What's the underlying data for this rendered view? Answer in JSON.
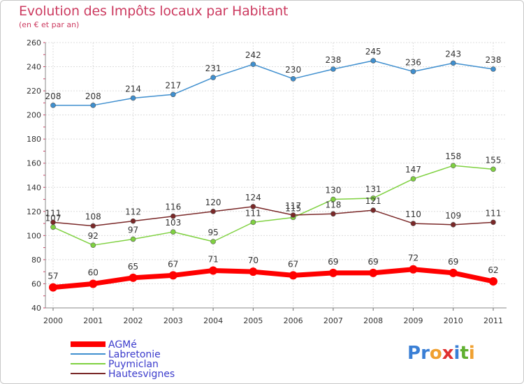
{
  "title": "Evolution des Impôts locaux par Habitant",
  "subtitle": "(en € et par an)",
  "logo": {
    "letters": [
      {
        "ch": "P",
        "color": "#3a7fd5"
      },
      {
        "ch": "r",
        "color": "#3a7fd5"
      },
      {
        "ch": "o",
        "color": "#f0a030"
      },
      {
        "ch": "x",
        "color": "#e03030"
      },
      {
        "ch": "i",
        "color": "#3a7fd5"
      },
      {
        "ch": "t",
        "color": "#60b030"
      },
      {
        "ch": "i",
        "color": "#f0a030"
      }
    ]
  },
  "chart_data": {
    "type": "line",
    "title": "Evolution des Impôts locaux par Habitant",
    "subtitle": "(en € et par an)",
    "x": [
      "2000",
      "2001",
      "2002",
      "2003",
      "2004",
      "2005",
      "2006",
      "2007",
      "2008",
      "2009",
      "2010",
      "2011"
    ],
    "yticks": [
      "40",
      "60",
      "80",
      "100",
      "120",
      "140",
      "160",
      "180",
      "200",
      "220",
      "240",
      "260"
    ],
    "ylim": [
      40,
      260
    ],
    "grid": true,
    "legend_position": "bottom-left",
    "series": [
      {
        "name": "AGMé",
        "color": "#ff0000",
        "values": [
          57,
          60,
          65,
          67,
          71,
          70,
          67,
          69,
          69,
          72,
          69,
          62
        ],
        "labels": [
          "57",
          "60",
          "65",
          "67",
          "71",
          "70",
          "67",
          "69",
          "69",
          "72",
          "69",
          "62"
        ],
        "emphasis": true
      },
      {
        "name": "Labretonie",
        "color": "#3f8fcf",
        "values": [
          208,
          208,
          214,
          217,
          231,
          242,
          230,
          238,
          245,
          236,
          243,
          238
        ],
        "labels": [
          "208",
          "208",
          "214",
          "217",
          "231",
          "242",
          "230",
          "238",
          "245",
          "236",
          "243",
          "238"
        ]
      },
      {
        "name": "Puymiclan",
        "color": "#7fd140",
        "values": [
          107,
          92,
          97,
          103,
          95,
          111,
          115,
          130,
          131,
          147,
          158,
          155
        ],
        "labels": [
          "107",
          "92",
          "97",
          "103",
          "95",
          "111",
          "115",
          "130",
          "131",
          "147",
          "158",
          "155"
        ]
      },
      {
        "name": "Hautesvignes",
        "color": "#7a2828",
        "values": [
          111,
          108,
          112,
          116,
          120,
          124,
          117,
          118,
          121,
          110,
          109,
          111
        ],
        "labels": [
          "111",
          "108",
          "112",
          "116",
          "120",
          "124",
          "117",
          "118",
          "121",
          "110",
          "109",
          "111"
        ]
      }
    ]
  }
}
